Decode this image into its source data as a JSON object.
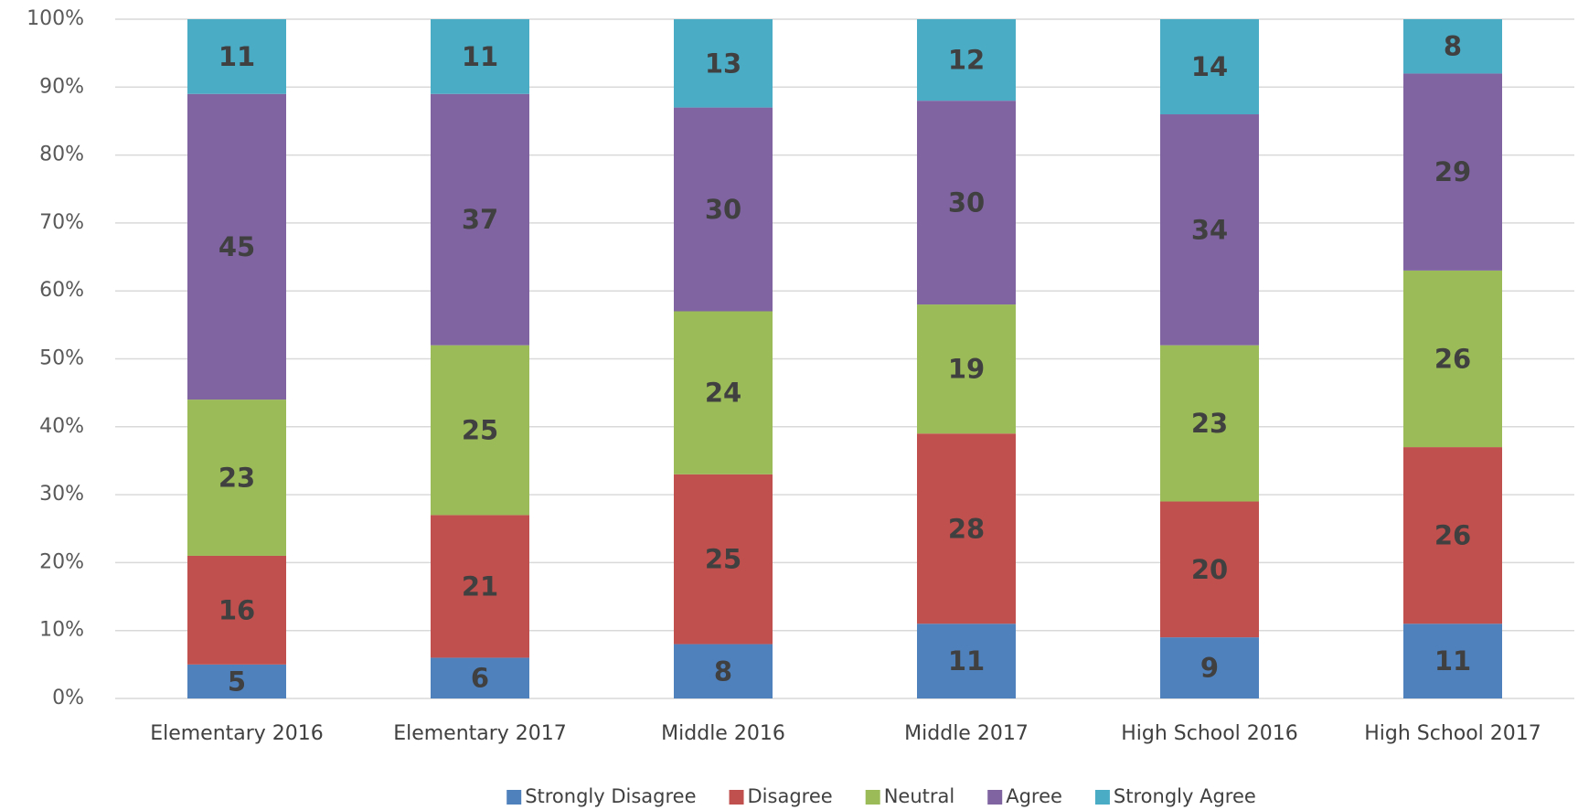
{
  "chart_data": {
    "type": "stacked_bar",
    "categories": [
      "Elementary 2016",
      "Elementary 2017",
      "Middle 2016",
      "Middle 2017",
      "High School 2016",
      "High School 2017"
    ],
    "series": [
      {
        "name": "Strongly Disagree",
        "color": "#4f81bd",
        "values": [
          5,
          6,
          8,
          11,
          9,
          11
        ]
      },
      {
        "name": "Disagree",
        "color": "#c0504d",
        "values": [
          16,
          21,
          25,
          28,
          20,
          26
        ]
      },
      {
        "name": "Neutral",
        "color": "#9bbb59",
        "values": [
          23,
          25,
          24,
          19,
          23,
          26
        ]
      },
      {
        "name": "Agree",
        "color": "#8064a2",
        "values": [
          45,
          37,
          30,
          30,
          34,
          29
        ]
      },
      {
        "name": "Strongly Agree",
        "color": "#4bacc6",
        "values": [
          11,
          11,
          13,
          12,
          14,
          8
        ]
      }
    ],
    "ylim": [
      0,
      100
    ],
    "yticks": [
      {
        "value": 0,
        "label": "0%"
      },
      {
        "value": 10,
        "label": "10%"
      },
      {
        "value": 20,
        "label": "20%"
      },
      {
        "value": 30,
        "label": "30%"
      },
      {
        "value": 40,
        "label": "40%"
      },
      {
        "value": 50,
        "label": "50%"
      },
      {
        "value": 60,
        "label": "60%"
      },
      {
        "value": 70,
        "label": "70%"
      },
      {
        "value": 80,
        "label": "80%"
      },
      {
        "value": 90,
        "label": "90%"
      },
      {
        "value": 100,
        "label": "100%"
      }
    ],
    "grid": true,
    "legend": "bottom"
  }
}
